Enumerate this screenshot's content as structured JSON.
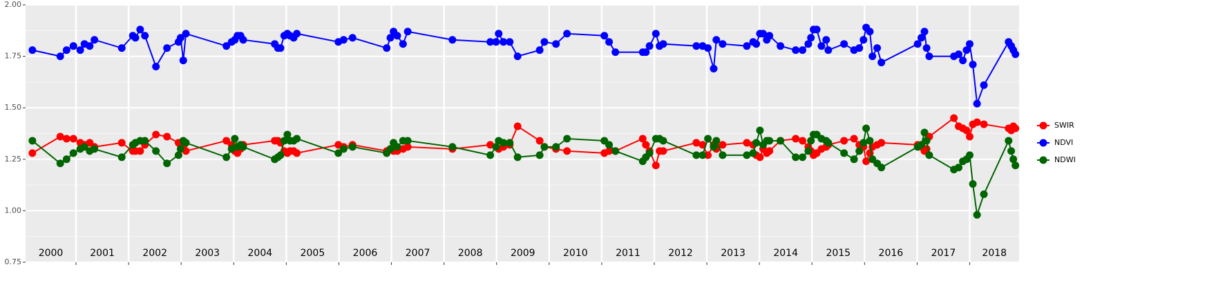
{
  "chart_data": {
    "type": "line",
    "x": [
      2000.17,
      2000.7,
      2000.82,
      2000.95,
      2001.08,
      2001.16,
      2001.26,
      2001.35,
      2001.87,
      2002.08,
      2002.13,
      2002.22,
      2002.31,
      2002.52,
      2002.73,
      2002.95,
      2002.99,
      2003.04,
      2003.09,
      2003.86,
      2003.96,
      2004.02,
      2004.07,
      2004.13,
      2004.18,
      2004.78,
      2004.84,
      2004.89,
      2004.96,
      2005.02,
      2005.07,
      2005.14,
      2005.2,
      2005.99,
      2006.09,
      2006.26,
      2006.91,
      2006.98,
      2007.04,
      2007.11,
      2007.22,
      2007.31,
      2008.16,
      2008.88,
      2008.99,
      2009.04,
      2009.13,
      2009.25,
      2009.4,
      2009.82,
      2009.91,
      2010.13,
      2010.34,
      2011.05,
      2011.14,
      2011.26,
      2011.78,
      2011.84,
      2011.91,
      2012.03,
      2012.1,
      2012.17,
      2012.8,
      2012.92,
      2013.02,
      2013.13,
      2013.18,
      2013.3,
      2013.76,
      2013.88,
      2013.94,
      2014.01,
      2014.07,
      2014.14,
      2014.19,
      2014.4,
      2014.69,
      2014.82,
      2014.93,
      2014.98,
      2015.03,
      2015.09,
      2015.18,
      2015.27,
      2015.31,
      2015.61,
      2015.8,
      2015.9,
      2015.98,
      2016.03,
      2016.1,
      2016.15,
      2016.24,
      2016.32,
      2017.01,
      2017.08,
      2017.14,
      2017.18,
      2017.23,
      2017.7,
      2017.79,
      2017.87,
      2017.94,
      2018.0,
      2018.06,
      2018.14,
      2018.27,
      2018.74,
      2018.79,
      2018.83,
      2018.87
    ],
    "series": [
      {
        "name": "SWIR",
        "color": "#ff0000",
        "values": [
          1.28,
          1.36,
          1.35,
          1.35,
          1.33,
          1.32,
          1.33,
          1.31,
          1.33,
          1.29,
          1.29,
          1.29,
          1.32,
          1.37,
          1.36,
          1.33,
          1.32,
          1.31,
          1.29,
          1.34,
          1.32,
          1.29,
          1.28,
          1.3,
          1.32,
          1.34,
          1.34,
          1.33,
          1.29,
          1.28,
          1.29,
          1.29,
          1.28,
          1.32,
          1.31,
          1.32,
          1.29,
          1.3,
          1.29,
          1.29,
          1.3,
          1.31,
          1.3,
          1.32,
          1.31,
          1.3,
          1.31,
          1.32,
          1.41,
          1.34,
          1.31,
          1.3,
          1.29,
          1.28,
          1.29,
          1.29,
          1.35,
          1.32,
          1.29,
          1.22,
          1.29,
          1.29,
          1.33,
          1.32,
          1.27,
          1.32,
          1.3,
          1.32,
          1.33,
          1.32,
          1.27,
          1.26,
          1.3,
          1.28,
          1.29,
          1.34,
          1.35,
          1.34,
          1.31,
          1.29,
          1.27,
          1.28,
          1.3,
          1.31,
          1.32,
          1.34,
          1.35,
          1.32,
          1.31,
          1.24,
          1.28,
          1.31,
          1.32,
          1.33,
          1.32,
          1.31,
          1.29,
          1.3,
          1.36,
          1.45,
          1.41,
          1.4,
          1.39,
          1.36,
          1.42,
          1.43,
          1.42,
          1.4,
          1.39,
          1.41,
          1.4
        ]
      },
      {
        "name": "NDVI",
        "color": "#0000ff",
        "values": [
          1.78,
          1.75,
          1.78,
          1.8,
          1.78,
          1.81,
          1.8,
          1.83,
          1.79,
          1.85,
          1.84,
          1.88,
          1.85,
          1.7,
          1.79,
          1.82,
          1.84,
          1.73,
          1.86,
          1.8,
          1.82,
          1.83,
          1.85,
          1.85,
          1.83,
          1.81,
          1.79,
          1.79,
          1.85,
          1.86,
          1.85,
          1.84,
          1.86,
          1.82,
          1.83,
          1.84,
          1.79,
          1.84,
          1.87,
          1.85,
          1.81,
          1.87,
          1.83,
          1.82,
          1.82,
          1.86,
          1.82,
          1.82,
          1.75,
          1.78,
          1.82,
          1.81,
          1.86,
          1.85,
          1.82,
          1.77,
          1.77,
          1.77,
          1.8,
          1.86,
          1.8,
          1.81,
          1.8,
          1.8,
          1.79,
          1.69,
          1.83,
          1.81,
          1.8,
          1.82,
          1.81,
          1.86,
          1.86,
          1.83,
          1.85,
          1.8,
          1.78,
          1.78,
          1.81,
          1.84,
          1.88,
          1.88,
          1.8,
          1.83,
          1.78,
          1.81,
          1.78,
          1.79,
          1.83,
          1.89,
          1.87,
          1.75,
          1.79,
          1.72,
          1.81,
          1.84,
          1.87,
          1.79,
          1.75,
          1.75,
          1.76,
          1.73,
          1.78,
          1.81,
          1.71,
          1.52,
          1.61,
          1.82,
          1.8,
          1.78,
          1.76
        ]
      },
      {
        "name": "NDWI",
        "color": "#006400",
        "values": [
          1.34,
          1.23,
          1.25,
          1.28,
          1.3,
          1.31,
          1.29,
          1.3,
          1.26,
          1.32,
          1.33,
          1.34,
          1.34,
          1.29,
          1.23,
          1.27,
          1.3,
          1.34,
          1.33,
          1.26,
          1.3,
          1.35,
          1.31,
          1.32,
          1.31,
          1.25,
          1.26,
          1.27,
          1.34,
          1.37,
          1.34,
          1.34,
          1.35,
          1.28,
          1.3,
          1.31,
          1.28,
          1.3,
          1.33,
          1.31,
          1.34,
          1.34,
          1.31,
          1.27,
          1.31,
          1.34,
          1.33,
          1.33,
          1.26,
          1.27,
          1.31,
          1.31,
          1.35,
          1.34,
          1.32,
          1.29,
          1.24,
          1.26,
          1.28,
          1.35,
          1.35,
          1.34,
          1.27,
          1.27,
          1.35,
          1.31,
          1.34,
          1.27,
          1.27,
          1.28,
          1.33,
          1.39,
          1.32,
          1.34,
          1.34,
          1.34,
          1.26,
          1.26,
          1.29,
          1.34,
          1.37,
          1.37,
          1.35,
          1.34,
          1.33,
          1.28,
          1.25,
          1.29,
          1.33,
          1.4,
          1.34,
          1.25,
          1.23,
          1.21,
          1.31,
          1.32,
          1.38,
          1.34,
          1.27,
          1.2,
          1.21,
          1.24,
          1.25,
          1.27,
          1.13,
          0.98,
          1.08,
          1.34,
          1.29,
          1.25,
          1.22
        ]
      }
    ],
    "xlim": [
      2000.04,
      2018.94
    ],
    "xticks": [
      2001,
      2002,
      2003,
      2004,
      2005,
      2006,
      2007,
      2008,
      2009,
      2010,
      2011,
      2012,
      2013,
      2014,
      2015,
      2016,
      2017,
      2018
    ],
    "year_labels": [
      "2000",
      "2001",
      "2002",
      "2003",
      "2004",
      "2005",
      "2006",
      "2007",
      "2008",
      "2009",
      "2010",
      "2011",
      "2012",
      "2013",
      "2014",
      "2015",
      "2016",
      "2017",
      "2018"
    ],
    "ylim": [
      0.75,
      2.0
    ],
    "yticks": [
      {
        "value": 0.75,
        "label": "0.75"
      },
      {
        "value": 1.0,
        "label": "1.00"
      },
      {
        "value": 1.25,
        "label": "1.25"
      },
      {
        "value": 1.5,
        "label": "1.50"
      },
      {
        "value": 1.75,
        "label": "1.75"
      },
      {
        "value": 2.0,
        "label": "2.00"
      }
    ],
    "grid": true,
    "legend": "right"
  }
}
